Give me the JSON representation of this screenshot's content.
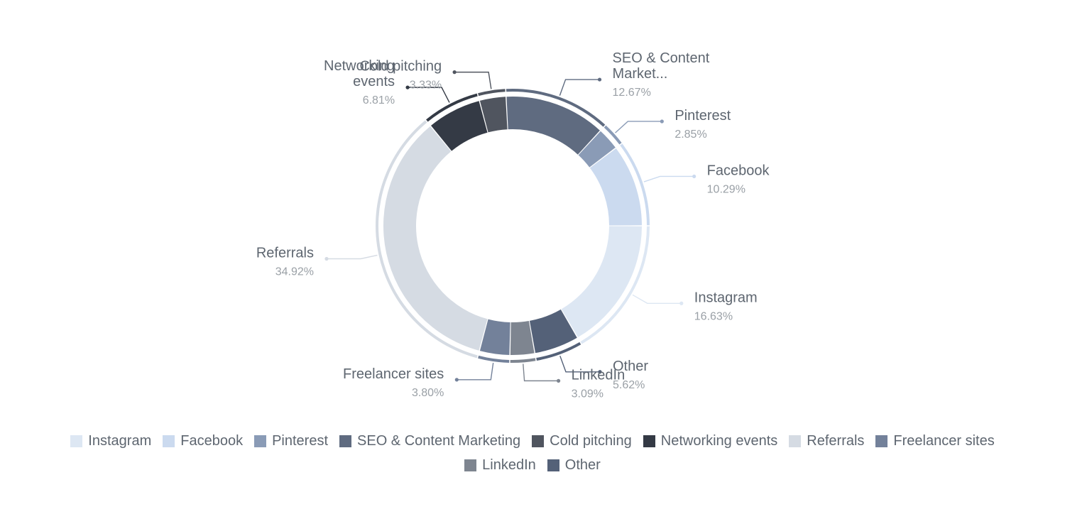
{
  "chart_data": {
    "type": "pie",
    "donut": true,
    "title": "",
    "slices": [
      {
        "name": "Instagram",
        "value": 16.63,
        "label_lines": [
          "Instagram"
        ],
        "pct": "16.63%",
        "color": "#dde7f3",
        "legend": "Instagram"
      },
      {
        "name": "Other",
        "value": 5.62,
        "label_lines": [
          "Other"
        ],
        "pct": "5.62%",
        "color": "#546178",
        "legend": "Other"
      },
      {
        "name": "LinkedIn",
        "value": 3.09,
        "label_lines": [
          "LinkedIn"
        ],
        "pct": "3.09%",
        "color": "#7e8590",
        "legend": "LinkedIn"
      },
      {
        "name": "Freelancer sites",
        "value": 3.8,
        "label_lines": [
          "Freelancer sites"
        ],
        "pct": "3.80%",
        "color": "#73819a",
        "legend": "Freelancer sites"
      },
      {
        "name": "Referrals",
        "value": 34.92,
        "label_lines": [
          "Referrals"
        ],
        "pct": "34.92%",
        "color": "#d5dbe3",
        "legend": "Referrals"
      },
      {
        "name": "Networking events",
        "value": 6.81,
        "label_lines": [
          "Networking",
          "events"
        ],
        "pct": "6.81%",
        "color": "#343a45",
        "legend": "Networking events"
      },
      {
        "name": "Cold pitching",
        "value": 3.33,
        "label_lines": [
          "Cold pitching"
        ],
        "pct": "3.33%",
        "color": "#50555f",
        "legend": "Cold pitching"
      },
      {
        "name": "SEO & Content Marketing",
        "value": 12.67,
        "label_lines": [
          "SEO & Content",
          "Market..."
        ],
        "pct": "12.67%",
        "color": "#5f6b80",
        "legend": "SEO & Content Marketing"
      },
      {
        "name": "Pinterest",
        "value": 2.85,
        "label_lines": [
          "Pinterest"
        ],
        "pct": "2.85%",
        "color": "#8a9bb6",
        "legend": "Pinterest"
      },
      {
        "name": "Facebook",
        "value": 10.29,
        "label_lines": [
          "Facebook"
        ],
        "pct": "10.29%",
        "color": "#cbdaef",
        "legend": "Facebook"
      }
    ],
    "legend_order": [
      "Instagram",
      "Facebook",
      "Pinterest",
      "SEO & Content Marketing",
      "Cold pitching",
      "Networking events",
      "Referrals",
      "Freelancer sites",
      "LinkedIn",
      "Other"
    ],
    "legend_position": "bottom",
    "colors": {
      "label_text": "#5e6670",
      "pct_text": "#9aa0a6"
    }
  }
}
